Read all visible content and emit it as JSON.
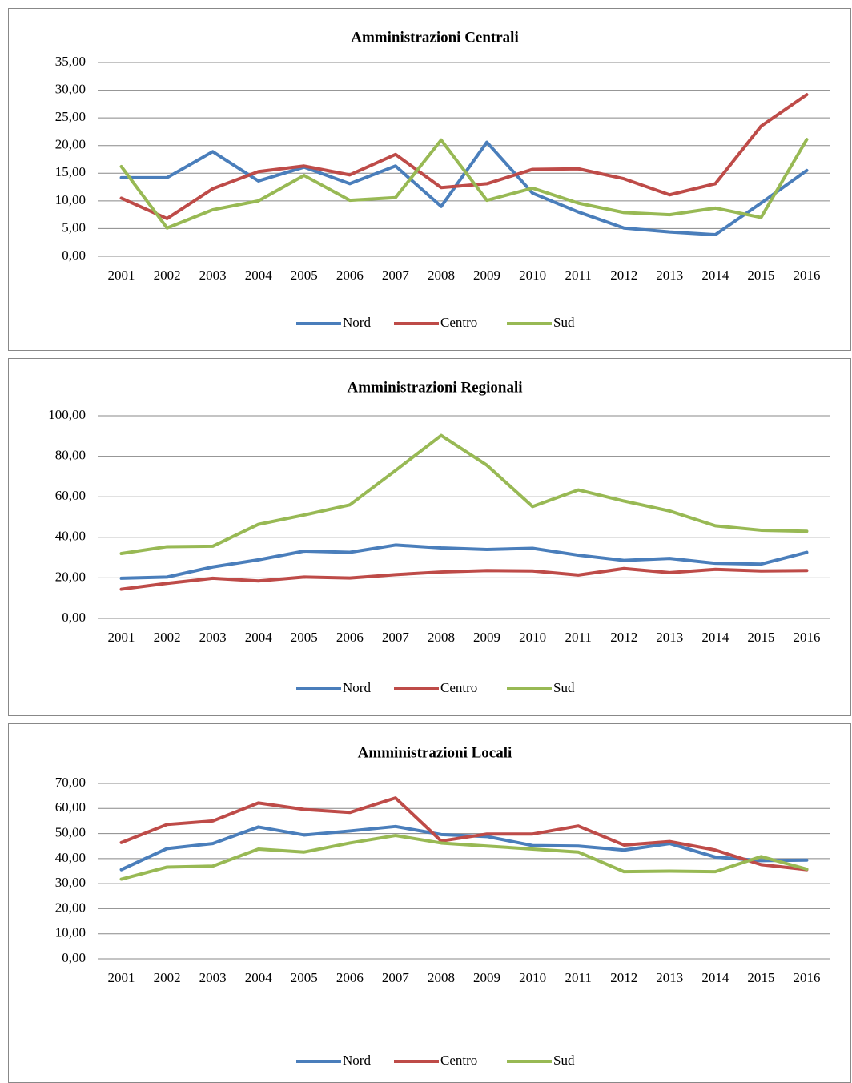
{
  "chart_data": [
    {
      "type": "line",
      "title": "Amministrazioni Centrali",
      "categories": [
        "2001",
        "2002",
        "2003",
        "2004",
        "2005",
        "2006",
        "2007",
        "2008",
        "2009",
        "2010",
        "2011",
        "2012",
        "2013",
        "2014",
        "2015",
        "2016"
      ],
      "series": [
        {
          "name": "Nord",
          "color": "#4a7ebb",
          "values": [
            14.2,
            14.2,
            18.9,
            13.6,
            16.1,
            13.1,
            16.3,
            9.0,
            20.6,
            11.4,
            8.0,
            5.1,
            4.4,
            3.9,
            9.6,
            15.5
          ]
        },
        {
          "name": "Centro",
          "color": "#be4b48",
          "values": [
            10.5,
            6.8,
            12.2,
            15.3,
            16.3,
            14.7,
            18.4,
            12.4,
            13.1,
            15.7,
            15.8,
            14.0,
            11.1,
            13.1,
            23.5,
            29.2
          ]
        },
        {
          "name": "Sud",
          "color": "#98b954",
          "values": [
            16.2,
            5.1,
            8.4,
            10.0,
            14.6,
            10.1,
            10.6,
            21.0,
            10.1,
            12.3,
            9.6,
            7.9,
            7.5,
            8.7,
            7.0,
            21.1
          ]
        }
      ],
      "ylim": [
        0,
        35
      ],
      "yticks": [
        {
          "value": 0,
          "label": "0,00"
        },
        {
          "value": 5,
          "label": "5,00"
        },
        {
          "value": 10,
          "label": "10,00"
        },
        {
          "value": 15,
          "label": "15,00"
        },
        {
          "value": 20,
          "label": "20,00"
        },
        {
          "value": 25,
          "label": "25,00"
        },
        {
          "value": 30,
          "label": "30,00"
        },
        {
          "value": 35,
          "label": "35,00"
        }
      ],
      "grid": true,
      "legend": "bottom"
    },
    {
      "type": "line",
      "title": "Amministrazioni Regionali",
      "categories": [
        "2001",
        "2002",
        "2003",
        "2004",
        "2005",
        "2006",
        "2007",
        "2008",
        "2009",
        "2010",
        "2011",
        "2012",
        "2013",
        "2014",
        "2015",
        "2016"
      ],
      "series": [
        {
          "name": "Nord",
          "color": "#4a7ebb",
          "values": [
            19.8,
            20.4,
            25.4,
            28.9,
            33.2,
            32.6,
            36.2,
            34.8,
            34.0,
            34.6,
            31.2,
            28.6,
            29.6,
            27.2,
            26.8,
            32.6
          ]
        },
        {
          "name": "Centro",
          "color": "#be4b48",
          "values": [
            14.4,
            17.3,
            19.8,
            18.5,
            20.4,
            19.9,
            21.6,
            22.9,
            23.6,
            23.4,
            21.4,
            24.6,
            22.6,
            24.2,
            23.4,
            23.6
          ]
        },
        {
          "name": "Sud",
          "color": "#98b954",
          "values": [
            32.0,
            35.4,
            35.6,
            46.4,
            51.0,
            56.0,
            73.0,
            90.3,
            75.6,
            55.2,
            63.4,
            57.9,
            53.0,
            45.7,
            43.5,
            43.0
          ]
        }
      ],
      "ylim": [
        0,
        100
      ],
      "yticks": [
        {
          "value": 0,
          "label": "0,00"
        },
        {
          "value": 20,
          "label": "20,00"
        },
        {
          "value": 40,
          "label": "40,00"
        },
        {
          "value": 60,
          "label": "60,00"
        },
        {
          "value": 80,
          "label": "80,00"
        },
        {
          "value": 100,
          "label": "100,00"
        }
      ],
      "grid": true,
      "legend": "bottom"
    },
    {
      "type": "line",
      "title": "Amministrazioni Locali",
      "categories": [
        "2001",
        "2002",
        "2003",
        "2004",
        "2005",
        "2006",
        "2007",
        "2008",
        "2009",
        "2010",
        "2011",
        "2012",
        "2013",
        "2014",
        "2015",
        "2016"
      ],
      "series": [
        {
          "name": "Nord",
          "color": "#4a7ebb",
          "values": [
            35.6,
            44.0,
            46.0,
            52.6,
            49.4,
            51.0,
            52.8,
            49.6,
            48.8,
            45.2,
            45.0,
            43.4,
            46.0,
            40.6,
            39.2,
            39.4
          ]
        },
        {
          "name": "Centro",
          "color": "#be4b48",
          "values": [
            46.4,
            53.6,
            55.0,
            62.2,
            59.6,
            58.4,
            64.2,
            47.0,
            49.8,
            49.8,
            53.0,
            45.4,
            46.8,
            43.4,
            37.6,
            35.6
          ]
        },
        {
          "name": "Sud",
          "color": "#98b954",
          "values": [
            31.8,
            36.6,
            37.0,
            43.8,
            42.6,
            46.2,
            49.2,
            46.2,
            45.0,
            43.8,
            42.6,
            34.8,
            35.0,
            34.8,
            40.8,
            35.8
          ]
        }
      ],
      "ylim": [
        0,
        70
      ],
      "yticks": [
        {
          "value": 0,
          "label": "0,00"
        },
        {
          "value": 10,
          "label": "10,00"
        },
        {
          "value": 20,
          "label": "20,00"
        },
        {
          "value": 30,
          "label": "30,00"
        },
        {
          "value": 40,
          "label": "40,00"
        },
        {
          "value": 50,
          "label": "50,00"
        },
        {
          "value": 60,
          "label": "60,00"
        },
        {
          "value": 70,
          "label": "70,00"
        }
      ],
      "grid": true,
      "legend": "bottom"
    }
  ]
}
